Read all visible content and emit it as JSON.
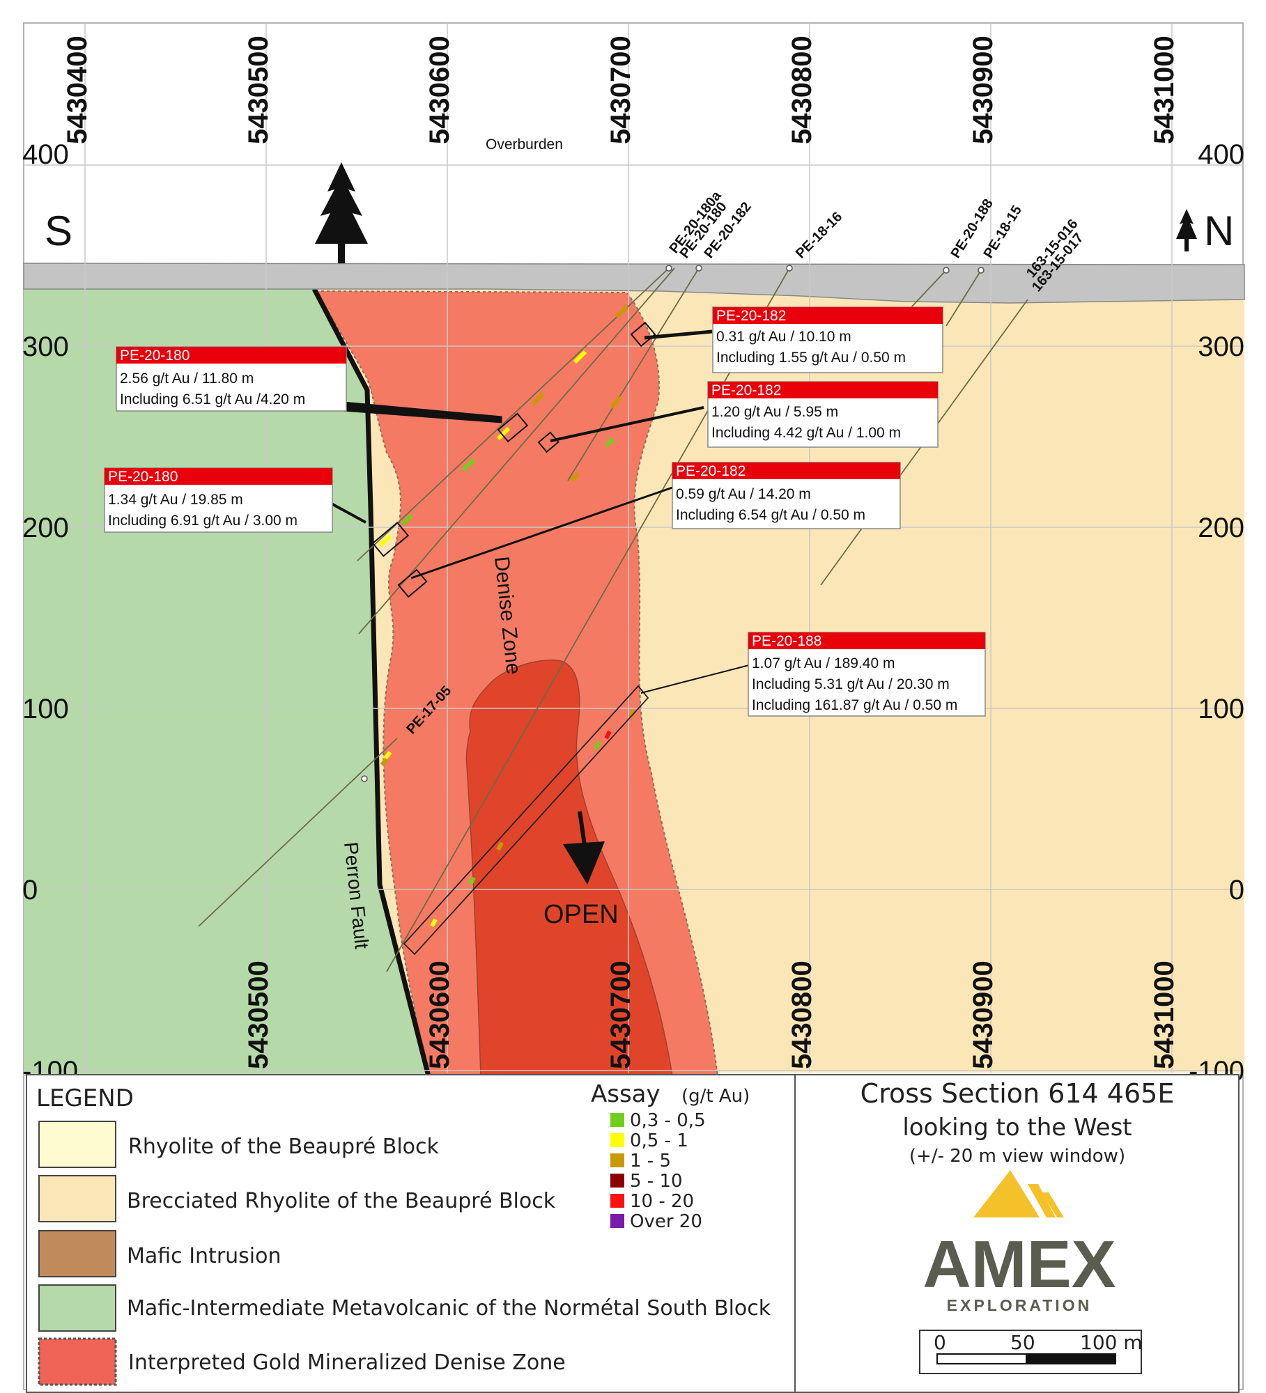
{
  "compass": {
    "south": "S",
    "north": "N"
  },
  "northing_ticks": [
    {
      "value": "5430400",
      "x": 5430400
    },
    {
      "value": "5430500",
      "x": 5430500
    },
    {
      "value": "5430600",
      "x": 5430600
    },
    {
      "value": "5430700",
      "x": 5430700
    },
    {
      "value": "5430800",
      "x": 5430800
    },
    {
      "value": "5430900",
      "x": 5430900
    },
    {
      "value": "5431000",
      "x": 5431000
    }
  ],
  "northing_ticks_bottom": [
    {
      "value": "5430500",
      "x": 5430500
    },
    {
      "value": "5430600",
      "x": 5430600
    },
    {
      "value": "5430700",
      "x": 5430700
    },
    {
      "value": "5430800",
      "x": 5430800
    },
    {
      "value": "5430900",
      "x": 5430900
    },
    {
      "value": "5431000",
      "x": 5431000
    }
  ],
  "elevation_ticks": [
    {
      "label": "400",
      "z": 400
    },
    {
      "label": "300",
      "z": 300
    },
    {
      "label": "200",
      "z": 200
    },
    {
      "label": "100",
      "z": 100
    },
    {
      "label": "0",
      "z": 0
    },
    {
      "label": "-100",
      "z": -100
    }
  ],
  "overburden_label": "Overburden",
  "zone_labels": {
    "denise_zone": "Denise Zone",
    "perron_fault": "Perron Fault",
    "open": "OPEN"
  },
  "drill_holes": [
    {
      "name": "PE-20-180a"
    },
    {
      "name": "PE-20-180"
    },
    {
      "name": "PE-20-182"
    },
    {
      "name": "PE-18-16"
    },
    {
      "name": "PE-20-188"
    },
    {
      "name": "PE-18-15"
    },
    {
      "name": "163-15-016"
    },
    {
      "name": "163-15-017"
    },
    {
      "name": "PE-17-05"
    }
  ],
  "callouts": [
    {
      "hole": "PE-20-182",
      "lines": [
        "0.31 g/t Au / 10.10 m",
        "Including 1.55 g/t Au / 0.50 m"
      ]
    },
    {
      "hole": "PE-20-180",
      "lines": [
        "2.56 g/t Au / 11.80 m",
        "Including 6.51 g/t Au /4.20 m"
      ]
    },
    {
      "hole": "PE-20-182",
      "lines": [
        "1.20 g/t Au / 5.95 m",
        "Including 4.42 g/t Au / 1.00 m"
      ]
    },
    {
      "hole": "PE-20-180",
      "lines": [
        "1.34 g/t Au / 19.85 m",
        "Including 6.91 g/t Au / 3.00 m"
      ]
    },
    {
      "hole": "PE-20-182",
      "lines": [
        "0.59 g/t Au / 14.20 m",
        "Including 6.54 g/t Au / 0.50 m"
      ]
    },
    {
      "hole": "PE-20-188",
      "lines": [
        "1.07 g/t Au / 189.40 m",
        "Including 5.31 g/t Au / 20.30 m",
        "Including 161.87 g/t Au / 0.50 m"
      ]
    }
  ],
  "legend": {
    "title": "LEGEND",
    "items": [
      {
        "label": "Rhyolite of the Beaupré Block",
        "color": "#fdfbcf"
      },
      {
        "label": "Brecciated Rhyolite of the Beaupré Block",
        "color": "#fbe6b8"
      },
      {
        "label": "Mafic Intrusion",
        "color": "#c18a5a"
      },
      {
        "label": "Mafic-Intermediate Metavolcanic of the Normétal South Block",
        "color": "#b5d9a9"
      },
      {
        "label": "Interpreted Gold Mineralized Denise Zone",
        "color": "#f06457"
      }
    ]
  },
  "assay": {
    "title": "Assay",
    "unit": "(g/t Au)",
    "classes": [
      {
        "label": "0,3 - 0,5",
        "color": "#6fcf1a"
      },
      {
        "label": "0,5 - 1",
        "color": "#ffff00"
      },
      {
        "label": "1 - 5",
        "color": "#c99a00"
      },
      {
        "label": "5 - 10",
        "color": "#8b0000"
      },
      {
        "label": "10 - 20",
        "color": "#ff1010"
      },
      {
        "label": "Over 20",
        "color": "#7a1aa8"
      }
    ]
  },
  "title_block": {
    "title": "Cross Section 614 465E",
    "subtitle": "looking to the West",
    "window": "(+/- 20 m view window)",
    "logo_name": "AMEX",
    "logo_sub": "EXPLORATION",
    "scale_labels": [
      "0",
      "50",
      "100 m"
    ]
  },
  "colors": {
    "brecciated_rhyolite": "#fbe6b8",
    "mafic_volcanic": "#b5d9a9",
    "denise_zone": "#f47a63",
    "core_zone": "#e0452b",
    "overburden": "#c4c4c4",
    "callout_red": "#e8000b",
    "logo_gold": "#f5c12b"
  }
}
